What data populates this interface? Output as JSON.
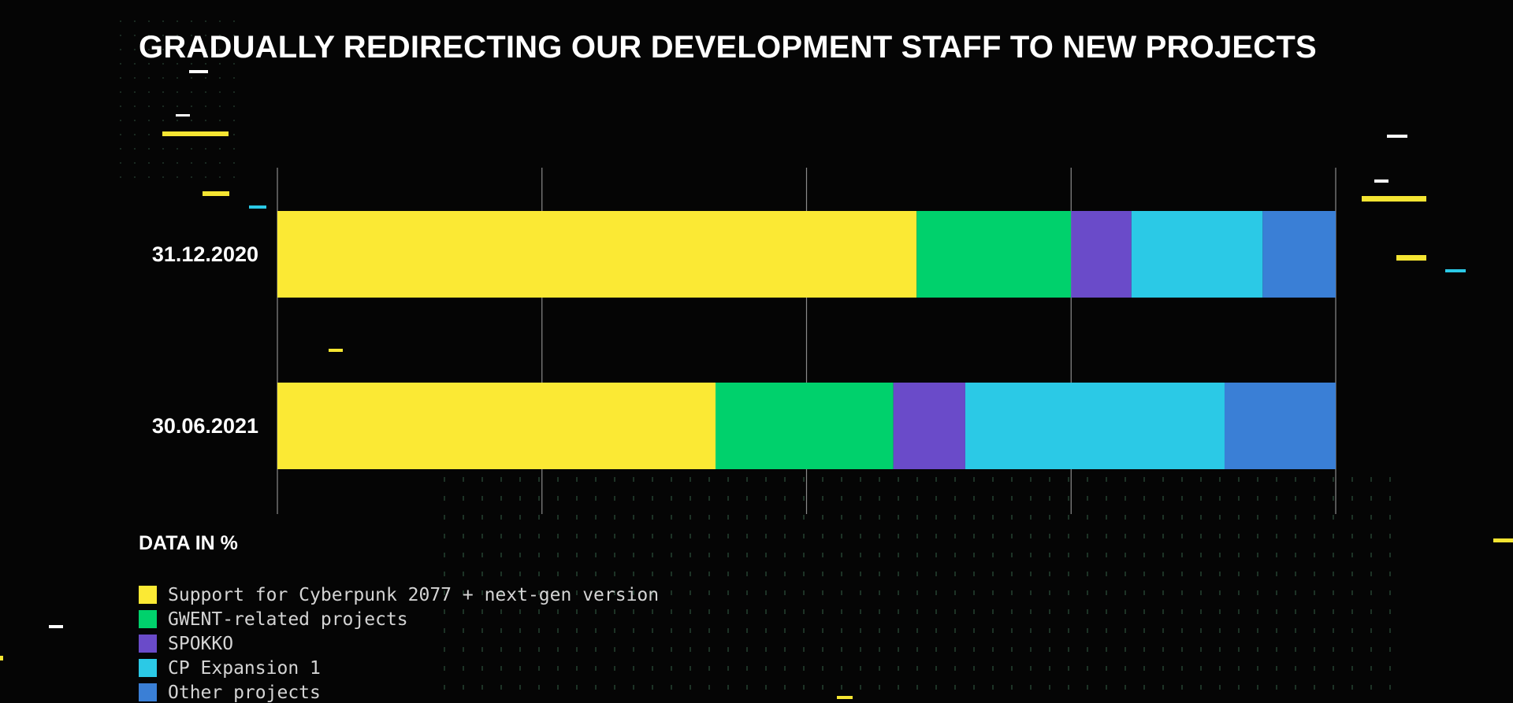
{
  "title": "GRADUALLY REDIRECTING OUR DEVELOPMENT STAFF TO NEW PROJECTS",
  "note": "DATA IN %",
  "colors": {
    "background": "#050505",
    "gridline": "#8a8a8a",
    "text": "#ffffff",
    "legend_text": "#d4d4d4",
    "decor_yellow": "#f5e532",
    "decor_cyan": "#2bc9e6",
    "decor_white": "#ffffff",
    "decor_dots": "#1f3a2a"
  },
  "chart_data": {
    "type": "bar",
    "orientation": "horizontal",
    "stacked": true,
    "categories": [
      "31.12.2020",
      "30.06.2021"
    ],
    "xlim": [
      0,
      100
    ],
    "grid": true,
    "legend_position": "bottom-left",
    "series": [
      {
        "name": "Support for Cyberpunk 2077 + next-gen version",
        "color": "#fbe934",
        "values": [
          60.4,
          41.4
        ]
      },
      {
        "name": "GWENT-related projects",
        "color": "#00d16c",
        "values": [
          14.6,
          16.8
        ]
      },
      {
        "name": "SPOKKO",
        "color": "#6a4bc9",
        "values": [
          5.7,
          6.8
        ]
      },
      {
        "name": "CP Expansion 1",
        "color": "#2bc9e6",
        "values": [
          12.4,
          24.5
        ]
      },
      {
        "name": "Other projects",
        "color": "#3a7fd6",
        "values": [
          6.9,
          10.5
        ]
      }
    ]
  }
}
